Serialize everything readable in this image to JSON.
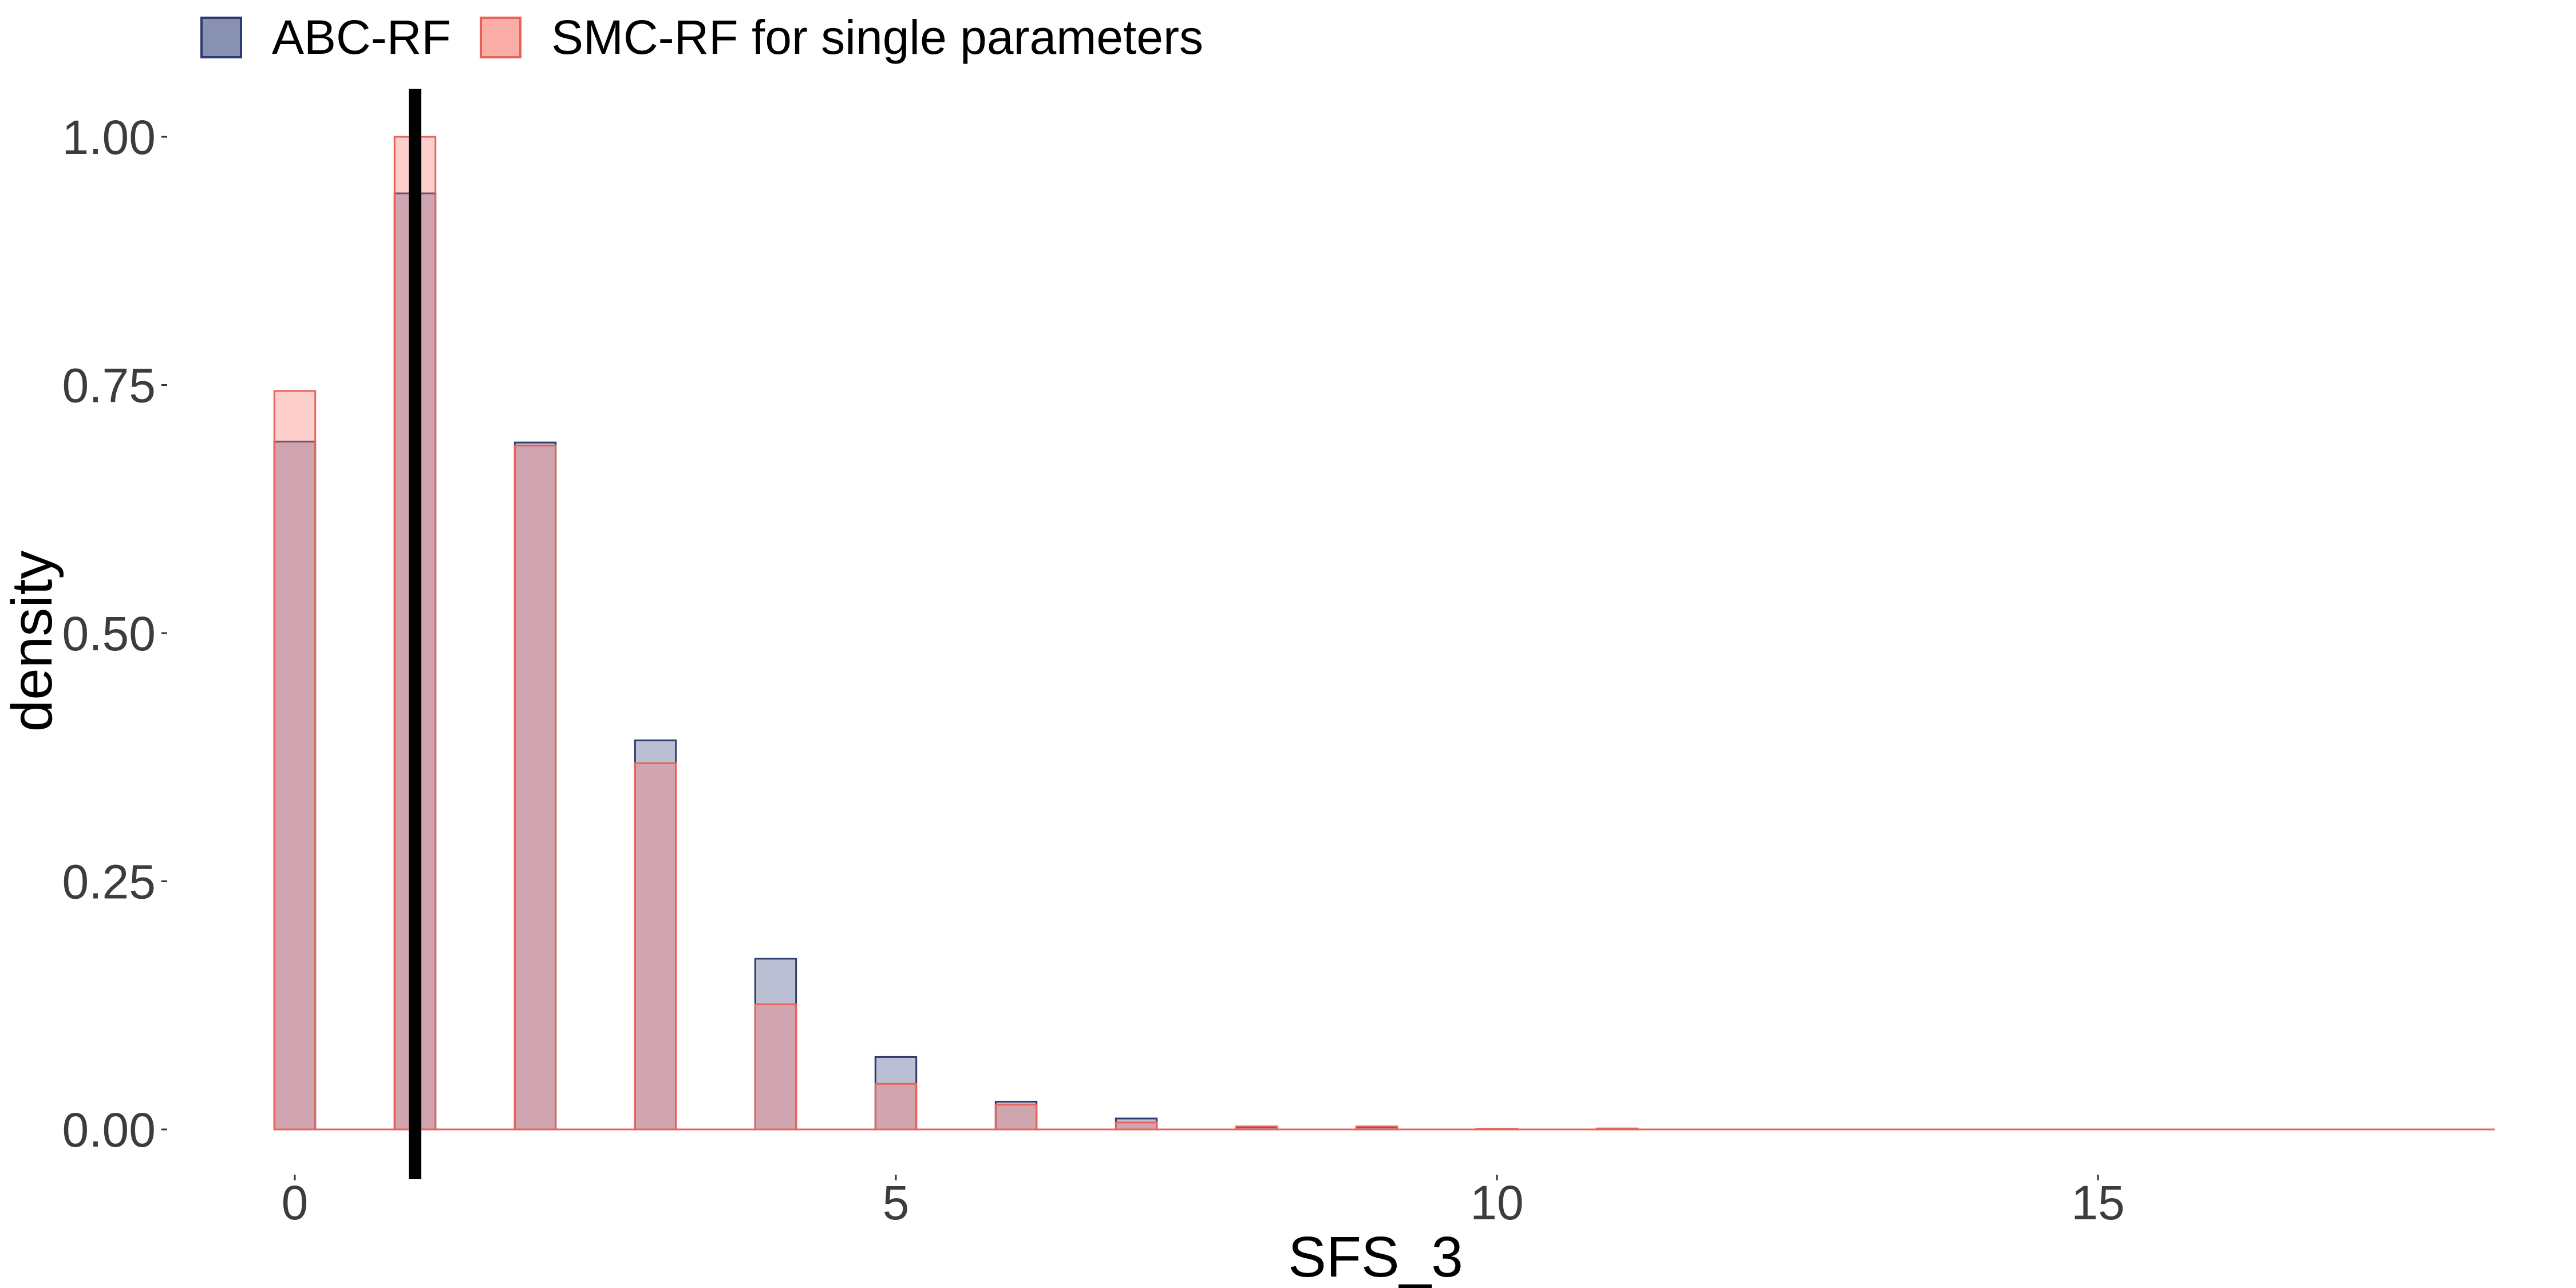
{
  "colors": {
    "abc_fill": "#3a4781",
    "abc_border": "#2f3b70",
    "smc_fill": "#f8766d",
    "smc_border": "#e8625a",
    "true_value_line": "#000000",
    "text": "#3c3c3c"
  },
  "legend": {
    "placement": "top-left",
    "items": [
      {
        "label": "ABC-RF"
      },
      {
        "label": "SMC-RF for single parameters"
      }
    ]
  },
  "chart_data": {
    "type": "bar",
    "subtype": "overlaid-density-histogram",
    "xlabel": "SFS_3",
    "ylabel": "density",
    "xlim": [
      -0.5,
      18.3
    ],
    "ylim": [
      0,
      1.0
    ],
    "x_ticks": [
      {
        "value": 0,
        "label": "0"
      },
      {
        "value": 5,
        "label": "5"
      },
      {
        "value": 10,
        "label": "10"
      },
      {
        "value": 15,
        "label": "15"
      }
    ],
    "y_ticks": [
      {
        "value": 0,
        "label": "0.00"
      },
      {
        "value": 0.25,
        "label": "0.25"
      },
      {
        "value": 0.5,
        "label": "0.50"
      },
      {
        "value": 0.75,
        "label": "0.75"
      },
      {
        "value": 1.0,
        "label": "1.00"
      }
    ],
    "bin_width": 0.34,
    "baseline_range": [
      -0.17,
      18.3
    ],
    "grid": false,
    "true_value": 1,
    "series": [
      {
        "name": "ABC-RF",
        "x": [
          0,
          1,
          2,
          3,
          4,
          5,
          6,
          7,
          8,
          9,
          10,
          11
        ],
        "values": [
          0.693,
          0.943,
          0.692,
          0.392,
          0.172,
          0.073,
          0.028,
          0.011,
          0.002,
          0.002,
          0.0005,
          0.0005
        ]
      },
      {
        "name": "SMC-RF for single parameters",
        "x": [
          0,
          1,
          2,
          3,
          4,
          5,
          6,
          7,
          8,
          9,
          10,
          11
        ],
        "values": [
          0.744,
          1.0,
          0.689,
          0.369,
          0.126,
          0.046,
          0.025,
          0.007,
          0.003,
          0.003,
          0.0005,
          0.001
        ]
      }
    ]
  }
}
